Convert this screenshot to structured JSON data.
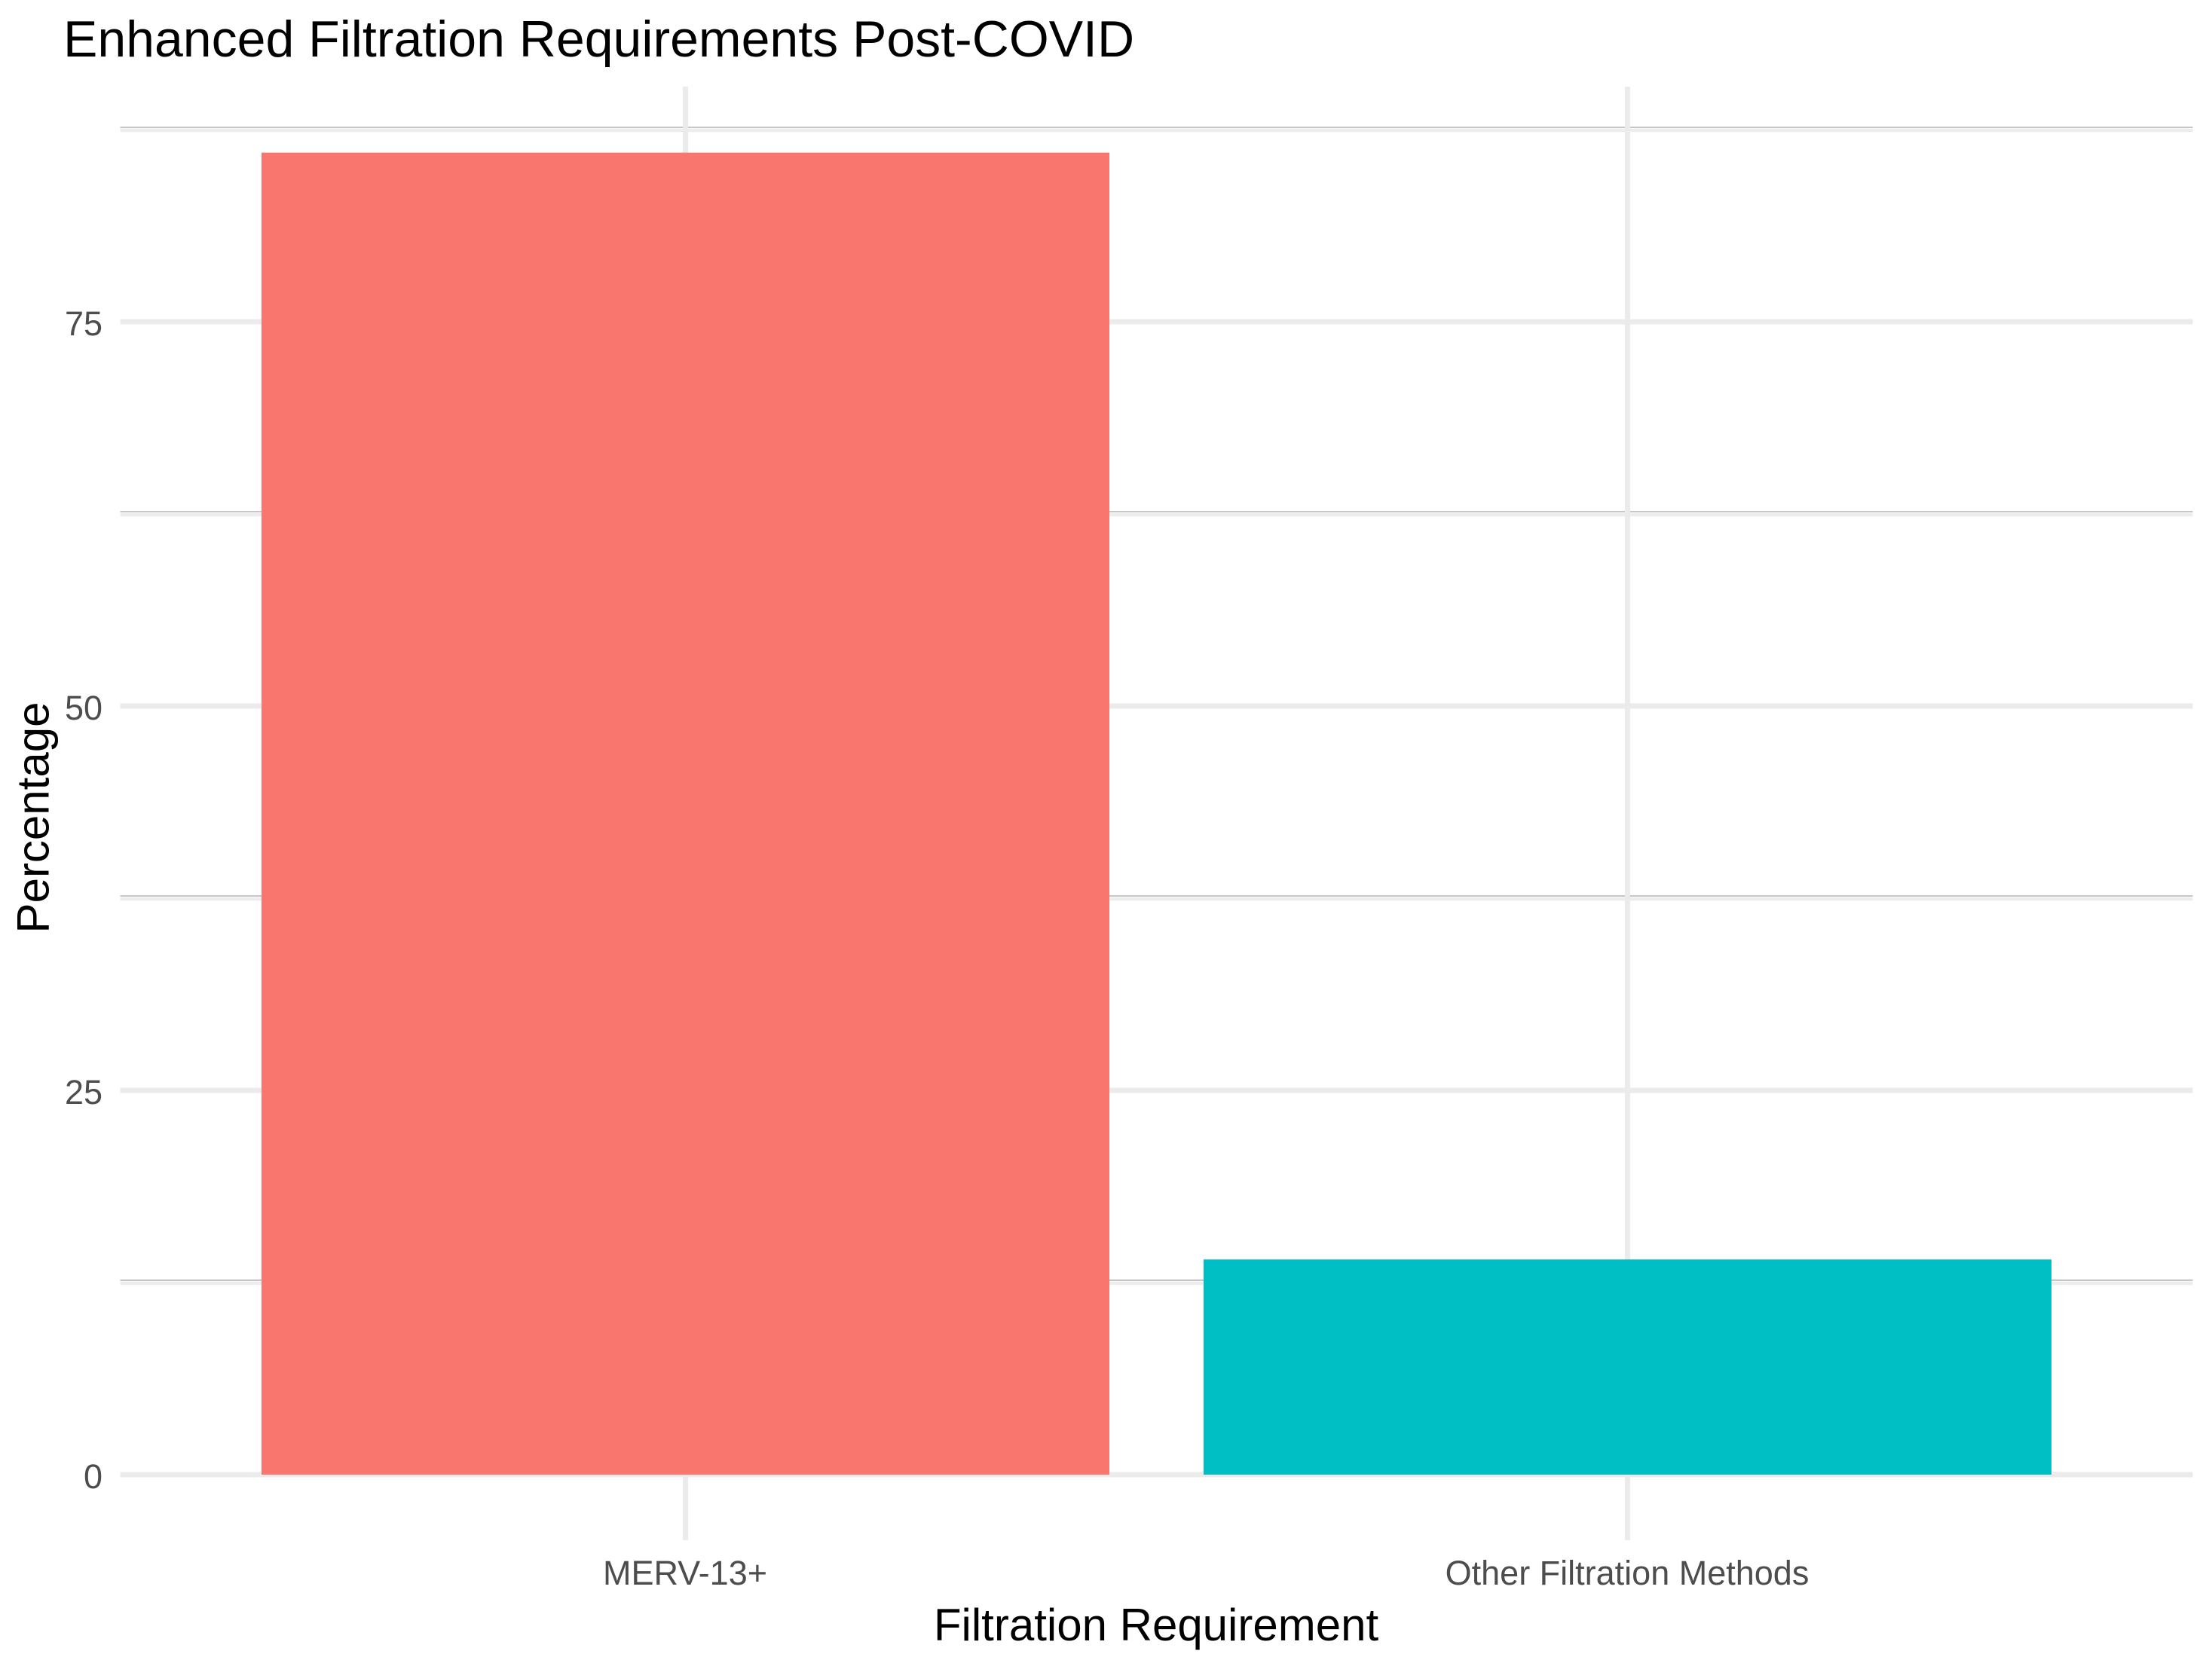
{
  "chart_data": {
    "type": "bar",
    "title": "Enhanced Filtration Requirements Post-COVID",
    "xlabel": "Filtration Requirement",
    "ylabel": "Percentage",
    "categories": [
      "MERV-13+",
      "Other Filtration Methods"
    ],
    "values": [
      86,
      14
    ],
    "colors": [
      "#F8766D",
      "#00BFC4"
    ],
    "ylim": [
      -4.3,
      90.3
    ],
    "yticks": [
      0,
      25,
      50,
      75
    ],
    "yticks_minor": [
      12.5,
      37.5,
      62.5,
      87.5
    ],
    "grid": "horizontal major+minor gridlines, vertical major gridlines at category centers",
    "legend": "none",
    "colors_meta": {
      "background": "#FFFFFF",
      "gridline_major": "#EBEBEB",
      "gridline_minor_light": "#EDEDED",
      "gridline_minor_edge": "#C6C6C6",
      "axis_text": "#4D4D4D",
      "title_text": "#000000"
    }
  }
}
